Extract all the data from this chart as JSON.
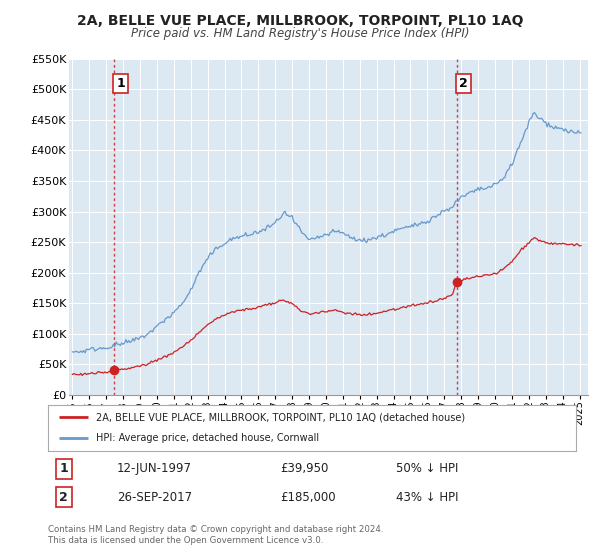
{
  "title": "2A, BELLE VUE PLACE, MILLBROOK, TORPOINT, PL10 1AQ",
  "subtitle": "Price paid vs. HM Land Registry's House Price Index (HPI)",
  "legend_label_red": "2A, BELLE VUE PLACE, MILLBROOK, TORPOINT, PL10 1AQ (detached house)",
  "legend_label_blue": "HPI: Average price, detached house, Cornwall",
  "transaction1_date": "12-JUN-1997",
  "transaction1_price": "£39,950",
  "transaction1_hpi": "50% ↓ HPI",
  "transaction1_year": 1997.45,
  "transaction1_value": 39950,
  "transaction2_date": "26-SEP-2017",
  "transaction2_price": "£185,000",
  "transaction2_hpi": "43% ↓ HPI",
  "transaction2_year": 2017.74,
  "transaction2_value": 185000,
  "footer": "Contains HM Land Registry data © Crown copyright and database right 2024.\nThis data is licensed under the Open Government Licence v3.0.",
  "ylim": [
    0,
    550000
  ],
  "xlim_start": 1994.8,
  "xlim_end": 2025.5,
  "red_color": "#cc2222",
  "blue_color": "#6699cc",
  "bg_color": "#dce8f2",
  "grid_color": "#ffffff",
  "background_color": "#ffffff"
}
